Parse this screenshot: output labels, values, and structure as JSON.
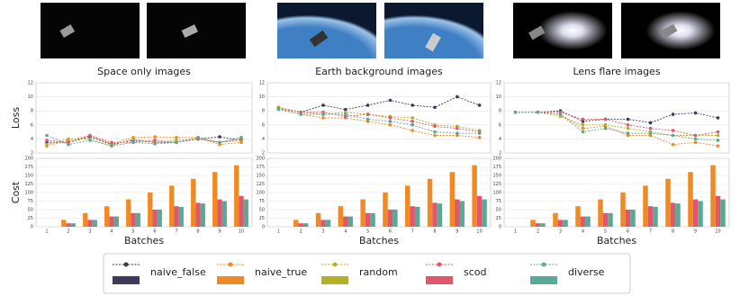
{
  "chart_data": [
    {
      "type": "line",
      "title": "Space only images",
      "ylabel": "Loss",
      "x": [
        1,
        2,
        3,
        4,
        5,
        6,
        7,
        8,
        9,
        10
      ],
      "xlim": [
        0.5,
        10.5
      ],
      "ylim": [
        2,
        12
      ],
      "yticks": [
        2,
        4,
        6,
        8,
        10,
        12
      ],
      "grid": true,
      "series": [
        {
          "name": "naive_false",
          "color": "#3f3a5a",
          "values": [
            3.5,
            3.5,
            4.3,
            3.2,
            3.8,
            3.5,
            3.5,
            4.0,
            4.3,
            3.8
          ]
        },
        {
          "name": "naive_true",
          "color": "#f08a24",
          "values": [
            3.0,
            3.8,
            4.5,
            3.3,
            4.2,
            4.3,
            4.2,
            4.2,
            3.2,
            3.5
          ]
        },
        {
          "name": "random",
          "color": "#b5b028",
          "values": [
            3.2,
            4.0,
            4.0,
            3.0,
            4.0,
            3.5,
            3.8,
            4.0,
            3.5,
            3.8
          ]
        },
        {
          "name": "scod",
          "color": "#e0566a",
          "values": [
            3.8,
            3.5,
            4.5,
            3.5,
            3.5,
            3.8,
            3.5,
            4.0,
            3.5,
            4.0
          ]
        },
        {
          "name": "diverse",
          "color": "#5aa896",
          "values": [
            4.5,
            3.2,
            3.8,
            3.0,
            3.5,
            3.3,
            3.5,
            4.2,
            3.5,
            4.2
          ]
        }
      ]
    },
    {
      "type": "line",
      "title": "Earth background images",
      "x": [
        1,
        2,
        3,
        4,
        5,
        6,
        7,
        8,
        9,
        10
      ],
      "xlim": [
        0.5,
        10.5
      ],
      "ylim": [
        2,
        12
      ],
      "yticks": [
        2,
        4,
        6,
        8,
        10,
        12
      ],
      "grid": true,
      "series": [
        {
          "name": "naive_false",
          "color": "#3f3a5a",
          "values": [
            8.5,
            7.8,
            8.8,
            8.2,
            8.8,
            9.5,
            8.8,
            8.5,
            10,
            8.8
          ]
        },
        {
          "name": "naive_true",
          "color": "#f08a24",
          "values": [
            8.3,
            7.5,
            7.0,
            7.0,
            6.5,
            6.0,
            5.2,
            4.5,
            4.5,
            4.2
          ]
        },
        {
          "name": "random",
          "color": "#b5b028",
          "values": [
            8.5,
            7.8,
            7.5,
            7.8,
            7.5,
            7.2,
            7.0,
            6.0,
            5.8,
            5.2
          ]
        },
        {
          "name": "scod",
          "color": "#e0566a",
          "values": [
            8.3,
            7.8,
            7.8,
            7.2,
            7.5,
            7.0,
            6.5,
            5.8,
            5.5,
            5.0
          ]
        },
        {
          "name": "diverse",
          "color": "#5aa896",
          "values": [
            8.2,
            7.5,
            7.5,
            7.5,
            6.8,
            6.5,
            6.0,
            5.0,
            4.8,
            4.8
          ]
        }
      ]
    },
    {
      "type": "line",
      "title": "Lens flare images",
      "x": [
        1,
        2,
        3,
        4,
        5,
        6,
        7,
        8,
        9,
        10
      ],
      "xlim": [
        0.5,
        10.5
      ],
      "ylim": [
        2,
        12
      ],
      "yticks": [
        2,
        4,
        6,
        8,
        10,
        12
      ],
      "grid": true,
      "series": [
        {
          "name": "naive_false",
          "color": "#3f3a5a",
          "values": [
            7.8,
            7.8,
            8.0,
            6.5,
            6.8,
            6.8,
            6.3,
            7.5,
            7.7,
            7.0
          ]
        },
        {
          "name": "naive_true",
          "color": "#f08a24",
          "values": [
            7.8,
            7.8,
            7.5,
            5.5,
            5.8,
            4.5,
            4.5,
            3.2,
            3.5,
            3.0
          ]
        },
        {
          "name": "random",
          "color": "#b5b028",
          "values": [
            7.8,
            7.8,
            7.2,
            6.0,
            6.0,
            5.5,
            5.0,
            4.5,
            4.5,
            4.5
          ]
        },
        {
          "name": "scod",
          "color": "#e0566a",
          "values": [
            7.8,
            7.8,
            7.8,
            6.8,
            6.8,
            6.0,
            5.5,
            5.2,
            4.5,
            5.0
          ]
        },
        {
          "name": "diverse",
          "color": "#5aa896",
          "values": [
            7.8,
            7.8,
            7.5,
            5.0,
            5.5,
            4.8,
            4.8,
            4.5,
            4.0,
            3.8
          ]
        }
      ]
    },
    {
      "type": "bar",
      "ylabel": "Cost",
      "xlabel": "Batches",
      "categories": [
        "1",
        "2",
        "3",
        "4",
        "5",
        "6",
        "7",
        "8",
        "9",
        "10"
      ],
      "ylim": [
        0,
        200
      ],
      "yticks": [
        0,
        25,
        50,
        75,
        100,
        125,
        150,
        175,
        200
      ],
      "grid": true,
      "series": [
        {
          "name": "naive_true",
          "color": "#f08a24",
          "values": [
            0,
            20,
            40,
            60,
            80,
            100,
            120,
            140,
            160,
            180
          ]
        },
        {
          "name": "scod",
          "color": "#e0566a",
          "values": [
            0,
            10,
            20,
            30,
            40,
            50,
            60,
            70,
            80,
            90
          ]
        },
        {
          "name": "diverse",
          "color": "#5aa896",
          "values": [
            0,
            10,
            20,
            30,
            40,
            50,
            58,
            68,
            75,
            80
          ]
        }
      ]
    },
    {
      "type": "bar",
      "xlabel": "Batches",
      "categories": [
        "1",
        "2",
        "3",
        "4",
        "5",
        "6",
        "7",
        "8",
        "9",
        "10"
      ],
      "ylim": [
        0,
        200
      ],
      "yticks": [
        0,
        25,
        50,
        75,
        100,
        125,
        150,
        175,
        200
      ],
      "grid": true,
      "series": [
        {
          "name": "naive_true",
          "color": "#f08a24",
          "values": [
            0,
            20,
            40,
            60,
            80,
            100,
            120,
            140,
            160,
            180
          ]
        },
        {
          "name": "scod",
          "color": "#e0566a",
          "values": [
            0,
            10,
            20,
            30,
            40,
            50,
            60,
            70,
            80,
            90
          ]
        },
        {
          "name": "diverse",
          "color": "#5aa896",
          "values": [
            0,
            10,
            20,
            30,
            40,
            50,
            58,
            68,
            75,
            80
          ]
        }
      ]
    },
    {
      "type": "bar",
      "xlabel": "Batches",
      "categories": [
        "1",
        "2",
        "3",
        "4",
        "5",
        "6",
        "7",
        "8",
        "9",
        "10"
      ],
      "ylim": [
        0,
        200
      ],
      "yticks": [
        0,
        25,
        50,
        75,
        100,
        125,
        150,
        175,
        200
      ],
      "grid": true,
      "series": [
        {
          "name": "naive_true",
          "color": "#f08a24",
          "values": [
            0,
            20,
            40,
            60,
            80,
            100,
            120,
            140,
            160,
            180
          ]
        },
        {
          "name": "scod",
          "color": "#e0566a",
          "values": [
            0,
            10,
            20,
            30,
            40,
            50,
            60,
            70,
            80,
            90
          ]
        },
        {
          "name": "diverse",
          "color": "#5aa896",
          "values": [
            0,
            10,
            20,
            30,
            40,
            50,
            58,
            68,
            75,
            80
          ]
        }
      ]
    }
  ]
}
